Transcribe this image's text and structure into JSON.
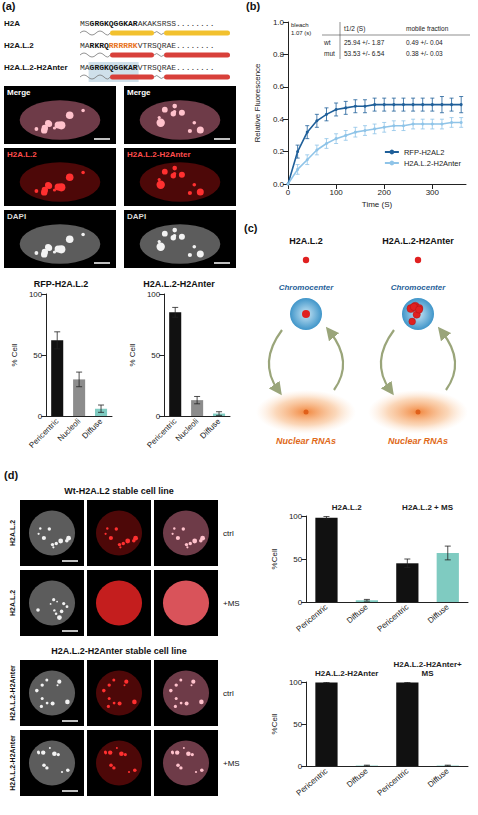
{
  "panel_labels": [
    "(a)",
    "(b)",
    "(c)",
    "(d)"
  ],
  "sequences": [
    {
      "name": "H2A",
      "color": "#f2c12e",
      "segments": [
        {
          "text": "MS",
          "style": "plain"
        },
        {
          "text": "GRGKQGGKAR",
          "style": "bold"
        },
        {
          "text": "AKAKSRSS........",
          "style": "plain"
        }
      ]
    },
    {
      "name": "H2A.L.2",
      "color": "#d8403a",
      "segments": [
        {
          "text": "MA",
          "style": "plain"
        },
        {
          "text": "RKRQ",
          "style": "bold"
        },
        {
          "text": "RRRRRK",
          "style": "orange"
        },
        {
          "text": "VTRSQRAE........",
          "style": "plain"
        }
      ]
    },
    {
      "name": "H2A.L.2-H2Anter",
      "color": "#d8403a",
      "segments": [
        {
          "text": "MA",
          "style": "plain"
        },
        {
          "text": "GRGKQGGKAR",
          "style": "highlight"
        },
        {
          "text": "VTRSQRAE........",
          "style": "plain"
        }
      ]
    }
  ],
  "images_a": [
    {
      "labels": [
        "Merge",
        "H2A.L.2",
        "DAPI"
      ]
    },
    {
      "labels": [
        "Merge",
        "H2A.L.2-H2Anter",
        "DAPI"
      ]
    }
  ],
  "chart_data": [
    {
      "type": "bar",
      "title": "RFP-H2A.L.2",
      "ylabel": "% Cell",
      "categories": [
        "Pericentric",
        "Nucleoli",
        "Diffuse"
      ],
      "values": [
        62,
        30,
        6
      ],
      "errors": [
        7,
        6,
        3
      ],
      "colors": [
        "#111111",
        "#8c8c8c",
        "#7fcbc1"
      ],
      "ylim": [
        0,
        100
      ],
      "yticks": [
        0,
        50,
        100
      ]
    },
    {
      "type": "bar",
      "title": "H2A.L.2-H2Anter",
      "ylabel": "% Cell",
      "categories": [
        "Pericentric",
        "Nucleoli",
        "Diffuse"
      ],
      "values": [
        85,
        13,
        2
      ],
      "errors": [
        4,
        3,
        1.5
      ],
      "colors": [
        "#111111",
        "#8c8c8c",
        "#7fcbc1"
      ],
      "ylim": [
        0,
        100
      ],
      "yticks": [
        0,
        50,
        100
      ]
    },
    {
      "type": "line",
      "xlabel": "Time (S)",
      "ylabel": "Relative Fluorescence",
      "x": [
        0,
        20,
        40,
        60,
        80,
        100,
        120,
        140,
        160,
        180,
        200,
        220,
        240,
        260,
        280,
        300,
        320,
        340,
        360
      ],
      "series": [
        {
          "name": "RFP-H2AL2",
          "color": "#1f5f99",
          "marker": "circle",
          "line_style": "solid",
          "values": [
            0,
            0.2,
            0.32,
            0.39,
            0.43,
            0.46,
            0.47,
            0.48,
            0.48,
            0.49,
            0.49,
            0.49,
            0.49,
            0.49,
            0.49,
            0.49,
            0.49,
            0.49,
            0.49
          ],
          "errors": [
            0.02,
            0.04,
            0.04,
            0.04,
            0.04,
            0.04,
            0.04,
            0.04,
            0.04,
            0.04,
            0.04,
            0.04,
            0.04,
            0.04,
            0.04,
            0.04,
            0.05,
            0.04,
            0.05
          ]
        },
        {
          "name": "H2A.L.2-H2Anter",
          "color": "#8fc4e8",
          "marker": "circle",
          "line_style": "solid",
          "values": [
            0,
            0.09,
            0.15,
            0.21,
            0.25,
            0.28,
            0.3,
            0.32,
            0.33,
            0.34,
            0.35,
            0.36,
            0.36,
            0.37,
            0.37,
            0.37,
            0.37,
            0.38,
            0.38
          ],
          "errors": [
            0.02,
            0.03,
            0.03,
            0.03,
            0.03,
            0.03,
            0.03,
            0.03,
            0.03,
            0.03,
            0.03,
            0.03,
            0.03,
            0.03,
            0.03,
            0.03,
            0.03,
            0.03,
            0.03
          ]
        }
      ],
      "xlim": [
        0,
        370
      ],
      "xticks": [
        0,
        100,
        200,
        300
      ],
      "ylim": [
        0,
        1
      ],
      "yticks": [
        {
          "value": 0,
          "label": "0.0"
        },
        0.2,
        0.4,
        0.6,
        0.8,
        {
          "value": 1,
          "label": "1.0"
        }
      ],
      "grid": false,
      "legend": "lower right",
      "table": {
        "header": [
          "t1/2 (S)",
          "mobile fraction"
        ],
        "rows": [
          [
            "wt",
            "25.94 +/- 1.87",
            "0.49 +/- 0.04"
          ],
          [
            "mut",
            "53.53 +/- 6.54",
            "0.38 +/- 0.03"
          ]
        ]
      },
      "annotations": [
        "bleach",
        "1.07 (s)"
      ]
    },
    {
      "type": "bar",
      "ylabel": "%Cell",
      "groups": [
        "H2A.L.2",
        "H2A.L.2 + MS"
      ],
      "categories": [
        "Pericentric",
        "Diffuse",
        "Pericentric",
        "Diffuse"
      ],
      "values": [
        98,
        2,
        45,
        57
      ],
      "errors": [
        1.5,
        1,
        5,
        8
      ],
      "colors": [
        "#111111",
        "#7fcbc1",
        "#111111",
        "#7fcbc1"
      ],
      "ylim": [
        0,
        100
      ],
      "yticks": [
        0,
        50,
        100
      ]
    },
    {
      "type": "bar",
      "ylabel": "%Cell",
      "groups": [
        "H2A.L.2-H2Anter",
        "H2A.L.2-H2Anter+ MS"
      ],
      "categories": [
        "Pericentric",
        "Diffuse",
        "Pericentric",
        "Diffuse"
      ],
      "values": [
        99.5,
        0.5,
        99.5,
        0.5
      ],
      "errors": [
        0.5,
        0.5,
        0.5,
        0.5
      ],
      "colors": [
        "#111111",
        "#7fcbc1",
        "#111111",
        "#7fcbc1"
      ],
      "ylim": [
        0,
        100
      ],
      "yticks": [
        0,
        50,
        100
      ]
    }
  ],
  "diagram_c": {
    "columns": [
      {
        "title": "H2A.L.2",
        "nodes": [
          "Chromocenter",
          "Nuclear RNAs"
        ]
      },
      {
        "title": "H2A.L.2-H2Anter",
        "nodes": [
          "Chromocenter",
          "Nuclear RNAs"
        ]
      }
    ]
  },
  "images_d": [
    {
      "title": "Wt-H2A.L2 stable cell line",
      "rows": [
        {
          "label": "H2A.L.2",
          "condition": "ctrl"
        },
        {
          "label": "H2A.L.2",
          "condition": "+MS"
        }
      ]
    },
    {
      "title": "H2A.L.2-H2Anter stable cell line",
      "rows": [
        {
          "label": "H2A.L.2-H2Anter",
          "condition": "ctrl"
        },
        {
          "label": "H2A.L.2-H2Anter",
          "condition": "+MS"
        }
      ]
    }
  ]
}
